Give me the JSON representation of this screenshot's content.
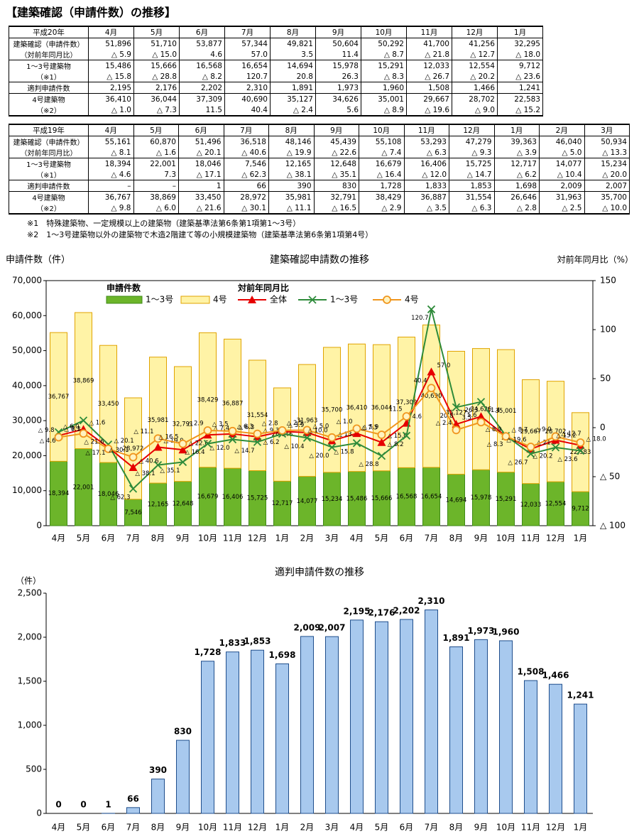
{
  "title": "【建築確認（申請件数）の推移】",
  "table1": {
    "header": [
      "平成20年",
      "4月",
      "5月",
      "6月",
      "7月",
      "8月",
      "9月",
      "10月",
      "11月",
      "12月",
      "1月"
    ],
    "rows": [
      [
        "建築確認（申請件数）",
        "51,896",
        "51,710",
        "53,877",
        "57,344",
        "49,821",
        "50,604",
        "50,292",
        "41,700",
        "41,256",
        "32,295"
      ],
      [
        "（対前年同月比）",
        "△ 5.9",
        "△ 15.0",
        "4.6",
        "57.0",
        "3.5",
        "11.4",
        "△ 8.7",
        "△ 21.8",
        "△ 12.7",
        "△ 18.0"
      ],
      [
        "1～3号建築物",
        "15,486",
        "15,666",
        "16,568",
        "16,654",
        "14,694",
        "15,978",
        "15,291",
        "12,033",
        "12,554",
        "9,712"
      ],
      [
        "（※1）",
        "△ 15.8",
        "△ 28.8",
        "△ 8.2",
        "120.7",
        "20.8",
        "26.3",
        "△ 8.3",
        "△ 26.7",
        "△ 20.2",
        "△ 23.6"
      ],
      [
        "適判申請件数",
        "2,195",
        "2,176",
        "2,202",
        "2,310",
        "1,891",
        "1,973",
        "1,960",
        "1,508",
        "1,466",
        "1,241"
      ],
      [
        "4号建築物",
        "36,410",
        "36,044",
        "37,309",
        "40,690",
        "35,127",
        "34,626",
        "35,001",
        "29,667",
        "28,702",
        "22,583"
      ],
      [
        "（※2）",
        "△ 1.0",
        "△ 7.3",
        "11.5",
        "40.4",
        "△ 2.4",
        "5.6",
        "△ 8.9",
        "△ 19.6",
        "△ 9.0",
        "△ 15.2"
      ]
    ]
  },
  "table2": {
    "header": [
      "平成19年",
      "4月",
      "5月",
      "6月",
      "7月",
      "8月",
      "9月",
      "10月",
      "11月",
      "12月",
      "1月",
      "2月",
      "3月"
    ],
    "rows": [
      [
        "建築確認（申請件数）",
        "55,161",
        "60,870",
        "51,496",
        "36,518",
        "48,146",
        "45,439",
        "55,108",
        "53,293",
        "47,279",
        "39,363",
        "46,040",
        "50,934"
      ],
      [
        "（対前年同月比）",
        "△ 8.1",
        "△ 1.6",
        "△ 20.1",
        "△ 40.6",
        "△ 19.9",
        "△ 22.6",
        "△ 7.4",
        "△ 6.3",
        "△ 9.3",
        "△ 3.9",
        "△ 5.0",
        "△ 13.3"
      ],
      [
        "1～3号建築物",
        "18,394",
        "22,001",
        "18,046",
        "7,546",
        "12,165",
        "12,648",
        "16,679",
        "16,406",
        "15,725",
        "12,717",
        "14,077",
        "15,234"
      ],
      [
        "（※1）",
        "△ 4.6",
        "7.3",
        "△ 17.1",
        "△ 62.3",
        "△ 38.1",
        "△ 35.1",
        "△ 16.4",
        "△ 12.0",
        "△ 14.7",
        "△ 6.2",
        "△ 10.4",
        "△ 20.0"
      ],
      [
        "適判申請件数",
        "–",
        "–",
        "1",
        "66",
        "390",
        "830",
        "1,728",
        "1,833",
        "1,853",
        "1,698",
        "2,009",
        "2,007"
      ],
      [
        "4号建築物",
        "36,767",
        "38,869",
        "33,450",
        "28,972",
        "35,981",
        "32,791",
        "38,429",
        "36,887",
        "31,554",
        "26,646",
        "31,963",
        "35,700"
      ],
      [
        "（※2）",
        "△ 9.8",
        "△ 6.0",
        "△ 21.6",
        "△ 30.1",
        "△ 11.1",
        "△ 16.5",
        "△ 2.9",
        "△ 3.5",
        "△ 6.3",
        "△ 2.8",
        "△ 2.5",
        "△ 10.0"
      ]
    ]
  },
  "notes": [
    "※1　特殊建築物、一定規模以上の建築物（建築基準法第6条第1項第1～3号）",
    "※2　1～3号建築物以外の建築物で木造2階建て等の小規模建築物（建築基準法第6条第1項第4号）"
  ],
  "chart_data": [
    {
      "type": "combo",
      "title": "建築確認申請数の推移",
      "ylabel": "申請件数（件）",
      "y2label": "対前年同月比（%）",
      "legend_titles": [
        "申請件数",
        "対前年同月比"
      ],
      "grid": false,
      "categories": [
        "4月",
        "5月",
        "6月",
        "7月",
        "8月",
        "9月",
        "10月",
        "11月",
        "12月",
        "1月",
        "2月",
        "3月",
        "4月",
        "5月",
        "6月",
        "7月",
        "8月",
        "9月",
        "10月",
        "11月",
        "12月",
        "1月"
      ],
      "ylim": [
        0,
        70000
      ],
      "yticks": [
        0,
        {
          "value": 10000,
          "label": "10,000"
        },
        {
          "value": 20000,
          "label": "20,000"
        },
        {
          "value": 30000,
          "label": "30,000"
        },
        {
          "value": 40000,
          "label": "40,000"
        },
        {
          "value": 50000,
          "label": "50,000"
        },
        {
          "value": 60000,
          "label": "60,000"
        },
        {
          "value": 70000,
          "label": "70,000"
        }
      ],
      "y2lim": [
        -100,
        150
      ],
      "y2ticks": [
        {
          "value": -100,
          "label": "△ 100"
        },
        {
          "value": -50,
          "label": "△ 50"
        },
        0,
        50,
        100,
        150
      ],
      "series": [
        {
          "name": "1～3号",
          "kind": "bar",
          "color": "#6cb52a",
          "values": [
            18394,
            22001,
            18046,
            7546,
            12165,
            12648,
            16679,
            16406,
            15725,
            12717,
            14077,
            15234,
            15486,
            15666,
            16568,
            16654,
            14694,
            15978,
            15291,
            12033,
            12554,
            9712
          ],
          "value_labels": [
            "18,394",
            "22,001",
            "18,046",
            "7,546",
            "12,165",
            "12,648",
            "16,679",
            "16,406",
            "15,725",
            "12,717",
            "14,077",
            "15,234",
            "15,486",
            "15,666",
            "16,568",
            "16,654",
            "14,694",
            "15,978",
            "15,291",
            "12,033",
            "12,554",
            "9,712"
          ]
        },
        {
          "name": "4号",
          "kind": "bar",
          "color": "#fff3a6",
          "values": [
            36767,
            38869,
            33450,
            28972,
            35981,
            32791,
            38429,
            36887,
            31554,
            26646,
            31963,
            35700,
            36410,
            36044,
            37309,
            40690,
            35127,
            34626,
            35001,
            29667,
            28702,
            22583
          ],
          "value_labels": [
            "36,767",
            "38,869",
            "33,450",
            "28,972",
            "35,981",
            "32,791",
            "38,429",
            "36,887",
            "31,554",
            "26,646",
            "31,963",
            "35,700",
            "36,410",
            "36,044",
            "37,309",
            "40,690",
            "35,127",
            "34,626",
            "35,001",
            "29,667",
            "28,702",
            "22,583"
          ]
        },
        {
          "name": "全体",
          "kind": "line",
          "axis": "y2",
          "marker": "triangle",
          "color": "#e60000",
          "values": [
            -8.1,
            -1.6,
            -20.1,
            -40.6,
            -19.9,
            -22.6,
            -7.4,
            -6.3,
            -9.3,
            -3.9,
            -5.0,
            -13.3,
            -5.9,
            -15.0,
            4.6,
            57.0,
            3.5,
            11.4,
            -8.7,
            -21.8,
            -12.7,
            -18.0
          ],
          "value_labels": [
            "△ 8.1",
            "△ 1.6",
            "△ 20.1",
            "△ 40.6",
            "△ 19.9",
            "△ 22.6",
            "△ 7.4",
            "△ 6.3",
            "△ 9.3",
            "△ 3.9",
            "△ 5.0",
            "△ 13.3",
            "△ 5.9",
            "△ 15.0",
            "4.6",
            "57.0",
            "3.5",
            "11.4",
            "△ 8.7",
            "△ 21.8",
            "△ 12.7",
            "△ 18.0"
          ]
        },
        {
          "name": "1～3号",
          "kind": "line",
          "axis": "y2",
          "marker": "cross",
          "color": "#2e8b3a",
          "values": [
            -4.6,
            7.3,
            -17.1,
            -62.3,
            -38.1,
            -35.1,
            -16.4,
            -12.0,
            -14.7,
            -6.2,
            -10.4,
            -20.0,
            -15.8,
            -28.8,
            -8.2,
            120.7,
            20.8,
            26.3,
            -8.3,
            -26.7,
            -20.2,
            -23.6
          ],
          "value_labels": [
            "△ 4.6",
            "7.3",
            "△ 17.1",
            "△ 62.3",
            "△ 38.1",
            "△ 35.1",
            "△ 16.4",
            "△ 12.0",
            "△ 14.7",
            "△ 6.2",
            "△ 10.4",
            "△ 20.0",
            "△ 15.8",
            "△ 28.8",
            "△ 8.2",
            "120.7",
            "20.8",
            "26.3",
            "△ 8.3",
            "△ 26.7",
            "△ 20.2",
            "△ 23.6"
          ]
        },
        {
          "name": "4号",
          "kind": "line",
          "axis": "y2",
          "marker": "circle",
          "color": "#f0961e",
          "values": [
            -9.8,
            -6.0,
            -21.6,
            -30.1,
            -11.1,
            -16.5,
            -2.9,
            -3.5,
            -6.3,
            -2.8,
            -2.5,
            -10.0,
            -1.0,
            -7.3,
            11.5,
            40.4,
            -2.4,
            5.6,
            -8.9,
            -19.6,
            -9.0,
            -15.2
          ],
          "value_labels": [
            "△ 9.8",
            "△ 6.0",
            "△ 21.6",
            "△ 30.1",
            "△ 11.1",
            "△ 16.5",
            "△ 2.9",
            "△ 3.5",
            "△ 6.3",
            "△ 2.8",
            "△ 2.5",
            "△ 10.0",
            "△ 1.0",
            "△ 7.3",
            "11.5",
            "40.4",
            "△ 2.4",
            "5.6",
            "△ 8.9",
            "△ 19.6",
            "△ 9.0",
            "△ 15.2"
          ]
        }
      ]
    },
    {
      "type": "bar",
      "title": "適判申請件数の推移",
      "ylabel": "（件）",
      "color": "#a8c9ee",
      "grid": false,
      "categories": [
        "4月",
        "5月",
        "6月",
        "7月",
        "8月",
        "9月",
        "10月",
        "11月",
        "12月",
        "1月",
        "2月",
        "3月",
        "4月",
        "5月",
        "6月",
        "7月",
        "8月",
        "9月",
        "10月",
        "11月",
        "12月",
        "1月"
      ],
      "values": [
        0,
        0,
        1,
        66,
        390,
        830,
        1728,
        1833,
        1853,
        1698,
        2009,
        2007,
        2195,
        2176,
        2202,
        2310,
        1891,
        1973,
        1960,
        1508,
        1466,
        1241
      ],
      "value_labels": [
        "0",
        "0",
        "1",
        "66",
        "390",
        "830",
        "1,728",
        "1,833",
        "1,853",
        "1,698",
        "2,009",
        "2,007",
        "2,195",
        "2,176",
        "2,202",
        "2,310",
        "1,891",
        "1,973",
        "1,960",
        "1,508",
        "1,466",
        "1,241"
      ],
      "ylim": [
        0,
        2500
      ],
      "yticks": [
        0,
        500,
        {
          "value": 1000,
          "label": "1,000"
        },
        {
          "value": 1500,
          "label": "1,500"
        },
        {
          "value": 2000,
          "label": "2,000"
        },
        {
          "value": 2500,
          "label": "2,500"
        }
      ]
    }
  ]
}
